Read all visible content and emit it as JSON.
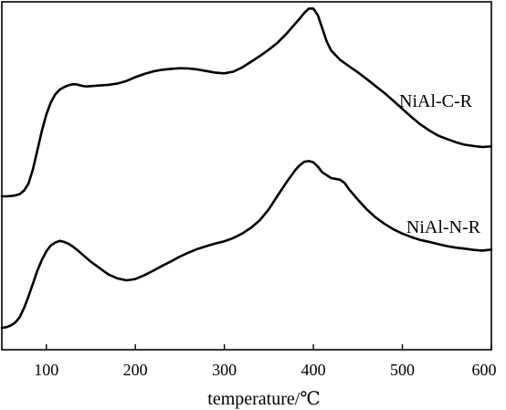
{
  "chart_data": {
    "type": "line",
    "xlabel": "temperature/℃",
    "ylabel": "",
    "xlim": [
      50,
      600
    ],
    "ylim": [
      0,
      100
    ],
    "xticks": [
      100,
      200,
      300,
      400,
      500,
      600
    ],
    "grid": false,
    "legend": "none",
    "series": [
      {
        "name": "NiAl-C-R",
        "x": [
          50,
          55,
          60,
          65,
          70,
          75,
          80,
          85,
          90,
          95,
          100,
          105,
          110,
          115,
          120,
          125,
          130,
          135,
          140,
          145,
          150,
          160,
          170,
          180,
          190,
          200,
          210,
          220,
          230,
          240,
          250,
          260,
          270,
          280,
          290,
          300,
          310,
          320,
          330,
          340,
          350,
          360,
          370,
          380,
          385,
          390,
          395,
          400,
          405,
          410,
          415,
          420,
          430,
          440,
          450,
          460,
          470,
          480,
          490,
          500,
          510,
          520,
          530,
          540,
          550,
          560,
          570,
          580,
          590,
          600
        ],
        "y": [
          45.0,
          45.0,
          45.1,
          45.3,
          45.7,
          46.8,
          49.0,
          53.5,
          59.5,
          65.5,
          70.5,
          74.3,
          76.8,
          78.3,
          79.1,
          79.7,
          80.0,
          79.9,
          79.5,
          79.3,
          79.4,
          79.6,
          79.8,
          80.2,
          81.0,
          82.2,
          83.2,
          84.0,
          84.5,
          84.8,
          85.0,
          84.9,
          84.6,
          84.1,
          83.6,
          83.4,
          83.9,
          85.2,
          87.0,
          88.8,
          90.8,
          93.0,
          95.8,
          99.0,
          100.6,
          102.3,
          103.6,
          103.6,
          101.5,
          97.5,
          93.3,
          90.5,
          87.6,
          85.6,
          83.7,
          81.6,
          79.4,
          77.2,
          74.8,
          72.3,
          69.8,
          67.5,
          65.6,
          64.0,
          62.9,
          61.9,
          61.1,
          60.7,
          60.4,
          60.6
        ]
      },
      {
        "name": "NiAl-N-R",
        "x": [
          50,
          55,
          60,
          65,
          70,
          75,
          80,
          85,
          90,
          95,
          100,
          105,
          110,
          115,
          120,
          125,
          130,
          135,
          140,
          150,
          160,
          170,
          180,
          190,
          200,
          210,
          220,
          230,
          240,
          250,
          260,
          270,
          280,
          290,
          300,
          310,
          320,
          330,
          340,
          350,
          360,
          370,
          380,
          385,
          390,
          395,
          400,
          405,
          410,
          420,
          430,
          435,
          440,
          450,
          460,
          470,
          480,
          490,
          500,
          510,
          520,
          530,
          540,
          550,
          560,
          570,
          580,
          590,
          600
        ],
        "y": [
          4.0,
          4.2,
          4.7,
          5.6,
          7.3,
          10.2,
          13.8,
          17.8,
          21.9,
          25.2,
          27.8,
          29.7,
          30.6,
          31.1,
          30.8,
          30.2,
          29.3,
          28.2,
          27.0,
          24.6,
          22.6,
          20.6,
          19.4,
          18.8,
          19.2,
          20.4,
          21.8,
          23.3,
          24.7,
          26.2,
          27.5,
          28.6,
          29.5,
          30.3,
          31.0,
          32.0,
          33.4,
          35.2,
          37.6,
          41.0,
          45.3,
          49.5,
          53.3,
          54.8,
          55.8,
          56.0,
          55.6,
          54.3,
          52.5,
          50.7,
          50.2,
          49.2,
          47.2,
          44.0,
          40.9,
          38.4,
          36.4,
          34.7,
          33.4,
          32.3,
          31.4,
          30.8,
          30.1,
          29.5,
          29.0,
          28.7,
          28.3,
          28.1,
          28.4
        ]
      }
    ]
  }
}
